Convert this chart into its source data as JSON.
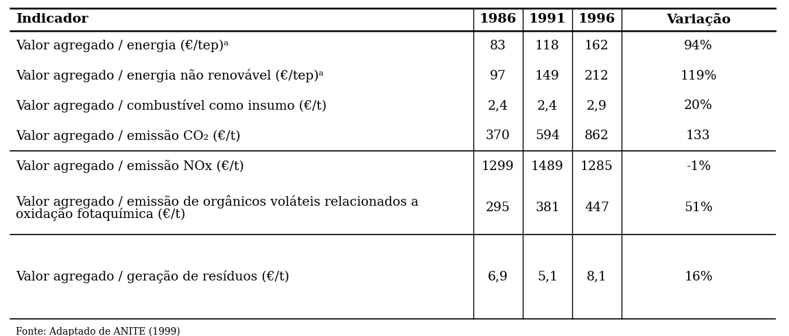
{
  "headers": [
    "Indicador",
    "1986",
    "1991",
    "1996",
    "Variação"
  ],
  "rows": [
    {
      "indicator": "Valor agregado / energia (€/tep)ᵃ",
      "v1986": "83",
      "v1991": "118",
      "v1996": "162",
      "variacao": "94%",
      "group": 1,
      "double": false
    },
    {
      "indicator": "Valor agregado / energia não renovável (€/tep)ᵃ",
      "v1986": "97",
      "v1991": "149",
      "v1996": "212",
      "variacao": "119%",
      "group": 1,
      "double": false
    },
    {
      "indicator": "Valor agregado / combustível como insumo (€/t)",
      "v1986": "2,4",
      "v1991": "2,4",
      "v1996": "2,9",
      "variacao": "20%",
      "group": 1,
      "double": false
    },
    {
      "indicator": "Valor agregado / emissão CO₂ (€/t)",
      "v1986": "370",
      "v1991": "594",
      "v1996": "862",
      "variacao": "133",
      "group": 1,
      "double": false
    },
    {
      "indicator": "Valor agregado / emissão NOx (€/t)",
      "v1986": "1299",
      "v1991": "1489",
      "v1996": "1285",
      "variacao": "-1%",
      "group": 2,
      "double": false
    },
    {
      "indicator_line1": "Valor agregado / emissão de orgânicos voláteis relacionados a",
      "indicator_line2": "oxidação fotaquímica (€/t)",
      "v1986": "295",
      "v1991": "381",
      "v1996": "447",
      "variacao": "51%",
      "group": 2,
      "double": true
    },
    {
      "indicator": "Valor agregado / geração de resíduos (€/t)",
      "v1986": "6,9",
      "v1991": "5,1",
      "v1996": "8,1",
      "variacao": "16%",
      "group": 3,
      "double": false
    }
  ],
  "footer": "Fonte: Adaptado de ANITE (1999)",
  "bg_color": "#ffffff",
  "text_color": "#000000",
  "header_fontsize": 14,
  "body_fontsize": 13.5,
  "footer_fontsize": 10
}
